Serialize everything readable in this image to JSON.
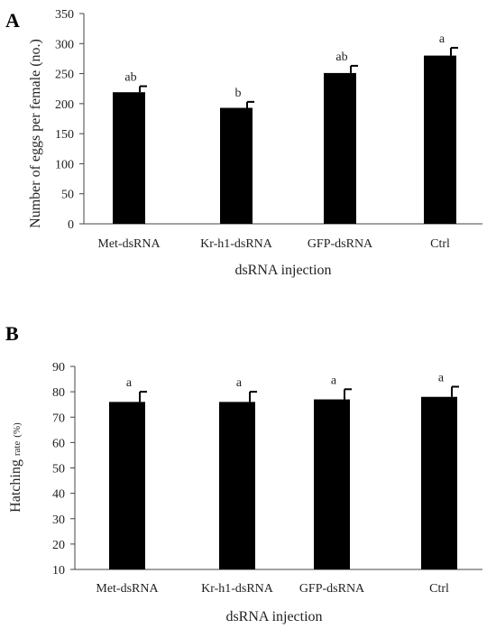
{
  "chart_data": [
    {
      "panel": "A",
      "type": "bar",
      "categories": [
        "Met-dsRNA",
        "Kr-h1-dsRNA",
        "GFP-dsRNA",
        "Ctrl"
      ],
      "values": [
        219,
        193,
        251,
        280
      ],
      "errors": [
        10,
        10,
        12,
        13
      ],
      "significance": [
        "ab",
        "b",
        "ab",
        "a"
      ],
      "xlabel": "dsRNA injection",
      "ylabel": "Number of eggs per female (no.)",
      "ylim": [
        0,
        350
      ],
      "yticks": [
        0,
        50,
        100,
        150,
        200,
        250,
        300,
        350
      ],
      "grid": false,
      "bar_color": "#000000"
    },
    {
      "panel": "B",
      "type": "bar",
      "categories": [
        "Met-dsRNA",
        "Kr-h1-dsRNA",
        "GFP-dsRNA",
        "Ctrl"
      ],
      "values": [
        76,
        76,
        77,
        78
      ],
      "errors": [
        4,
        4,
        4,
        4
      ],
      "significance": [
        "a",
        "a",
        "a",
        "a"
      ],
      "xlabel": "dsRNA injection",
      "ylabel_main": "Hatching",
      "ylabel_small": "rate",
      "ylabel_unit": "(%)",
      "ylim": [
        10,
        90
      ],
      "yticks": [
        10,
        20,
        30,
        40,
        50,
        60,
        70,
        80,
        90
      ],
      "grid": false,
      "bar_color": "#000000"
    }
  ]
}
